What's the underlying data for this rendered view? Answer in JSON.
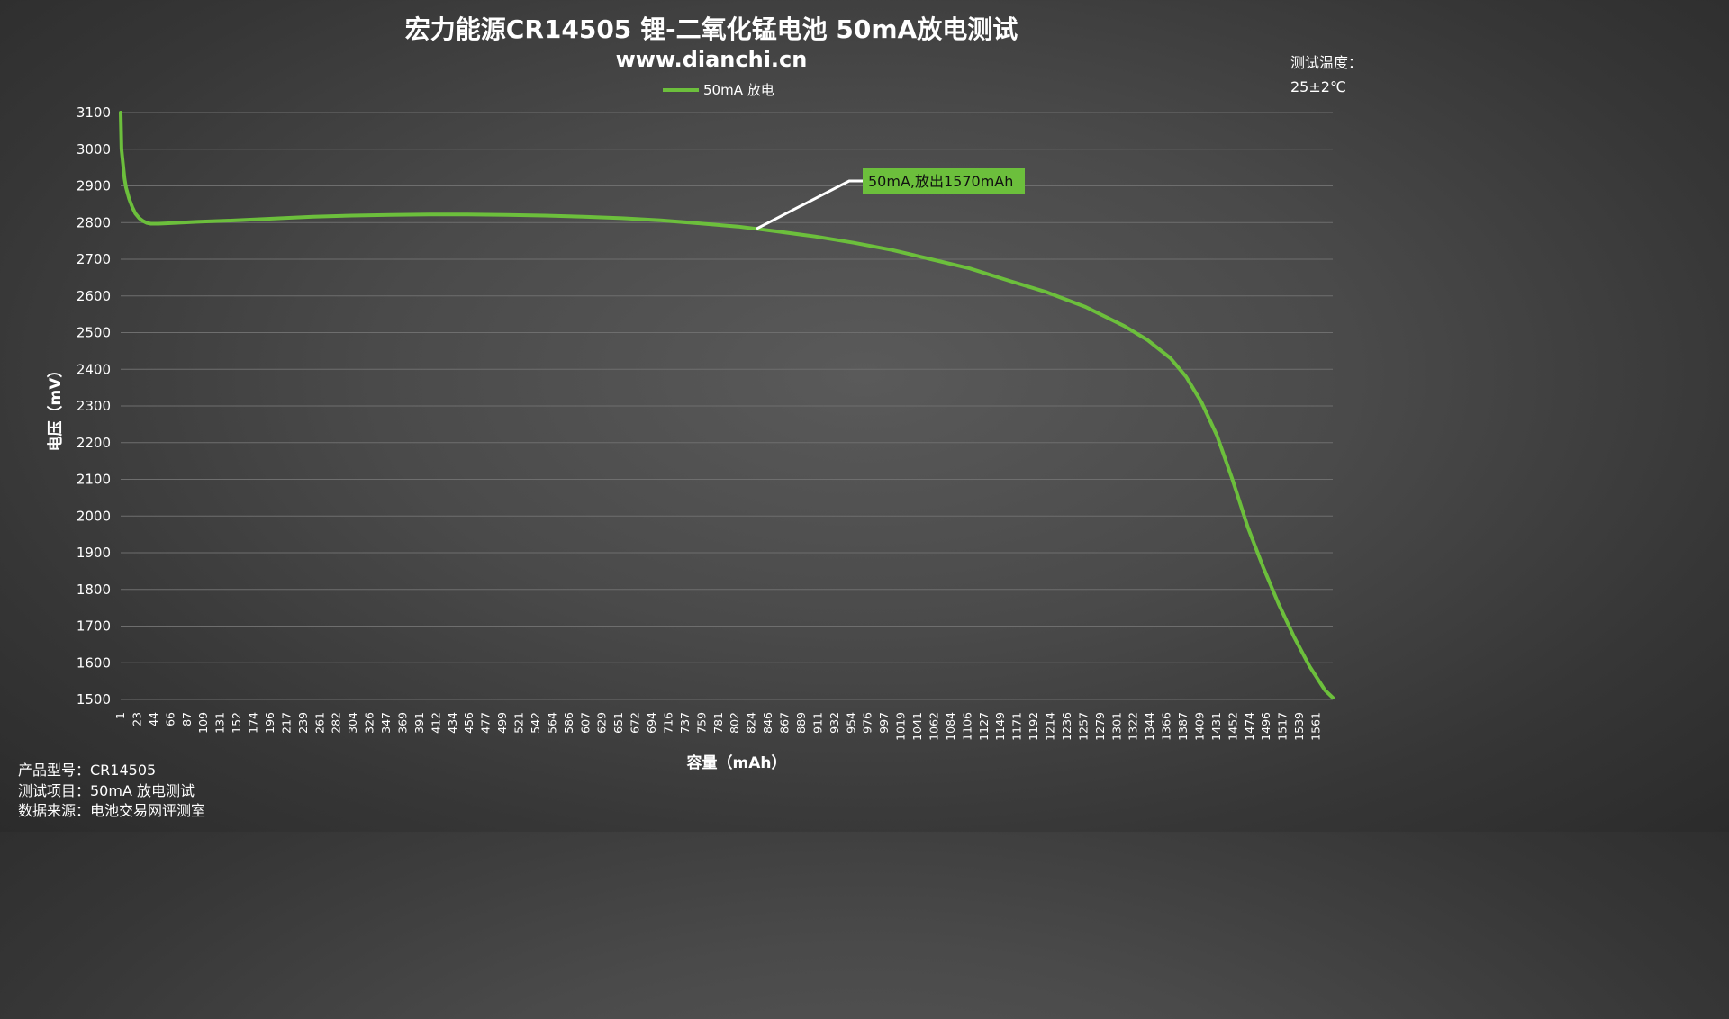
{
  "chart_data": {
    "type": "line",
    "title": "宏力能源CR14505 锂-二氧化锰电池 50mA放电测试",
    "subtitle": "www.dianchi.cn",
    "xlabel": "容量（mAh）",
    "ylabel": "电压（mV）",
    "ylim": [
      1500,
      3100
    ],
    "yticks": [
      3100,
      3000,
      2900,
      2800,
      2700,
      2600,
      2500,
      2400,
      2300,
      2200,
      2100,
      2000,
      1900,
      1800,
      1700,
      1600,
      1500
    ],
    "xlim": [
      1,
      1570
    ],
    "xticks": [
      "1",
      "23",
      "44",
      "66",
      "87",
      "109",
      "131",
      "152",
      "174",
      "196",
      "217",
      "239",
      "261",
      "282",
      "304",
      "326",
      "347",
      "369",
      "391",
      "412",
      "434",
      "456",
      "477",
      "499",
      "521",
      "542",
      "564",
      "586",
      "607",
      "629",
      "651",
      "672",
      "694",
      "716",
      "737",
      "759",
      "781",
      "802",
      "824",
      "846",
      "867",
      "889",
      "911",
      "932",
      "954",
      "976",
      "997",
      "1019",
      "1041",
      "1062",
      "1084",
      "1106",
      "1127",
      "1149",
      "1171",
      "1192",
      "1214",
      "1236",
      "1257",
      "1279",
      "1301",
      "1322",
      "1344",
      "1366",
      "1387",
      "1409",
      "1431",
      "1452",
      "1474",
      "1496",
      "1517",
      "1539",
      "1561"
    ],
    "grid": true,
    "legend_position": "top-center",
    "series": [
      {
        "name": "50mA 放电",
        "color": "#6cbf3c",
        "x": [
          1,
          2,
          4,
          6,
          8,
          12,
          16,
          20,
          25,
          30,
          35,
          40,
          50,
          60,
          80,
          100,
          150,
          200,
          250,
          300,
          350,
          400,
          450,
          500,
          550,
          600,
          650,
          700,
          750,
          800,
          824,
          850,
          900,
          950,
          1000,
          1050,
          1100,
          1150,
          1200,
          1250,
          1300,
          1330,
          1360,
          1380,
          1400,
          1420,
          1440,
          1460,
          1480,
          1500,
          1520,
          1540,
          1560,
          1570
        ],
        "y": [
          3100,
          3000,
          2960,
          2920,
          2895,
          2865,
          2842,
          2825,
          2812,
          2804,
          2799,
          2797,
          2797,
          2798,
          2800,
          2802,
          2806,
          2811,
          2816,
          2819,
          2821,
          2822,
          2822,
          2821,
          2819,
          2816,
          2812,
          2806,
          2798,
          2789,
          2783,
          2776,
          2762,
          2745,
          2725,
          2700,
          2675,
          2642,
          2610,
          2570,
          2518,
          2480,
          2430,
          2380,
          2310,
          2220,
          2100,
          1970,
          1860,
          1760,
          1670,
          1590,
          1525,
          1505
        ]
      }
    ],
    "annotations": [
      {
        "text": "50mA,放出1570mAh",
        "x": 824,
        "y": 2783
      }
    ]
  },
  "notes": {
    "temp_label": "测试温度：",
    "temp_value": "25±2℃",
    "product_model": "产品型号：CR14505",
    "test_item": "测试项目：50mA 放电测试",
    "data_source": "数据来源：电池交易网评测室"
  },
  "colors": {
    "line": "#6cbf3c",
    "annotation_bg": "#6cbf3c",
    "leader": "#ffffff"
  }
}
